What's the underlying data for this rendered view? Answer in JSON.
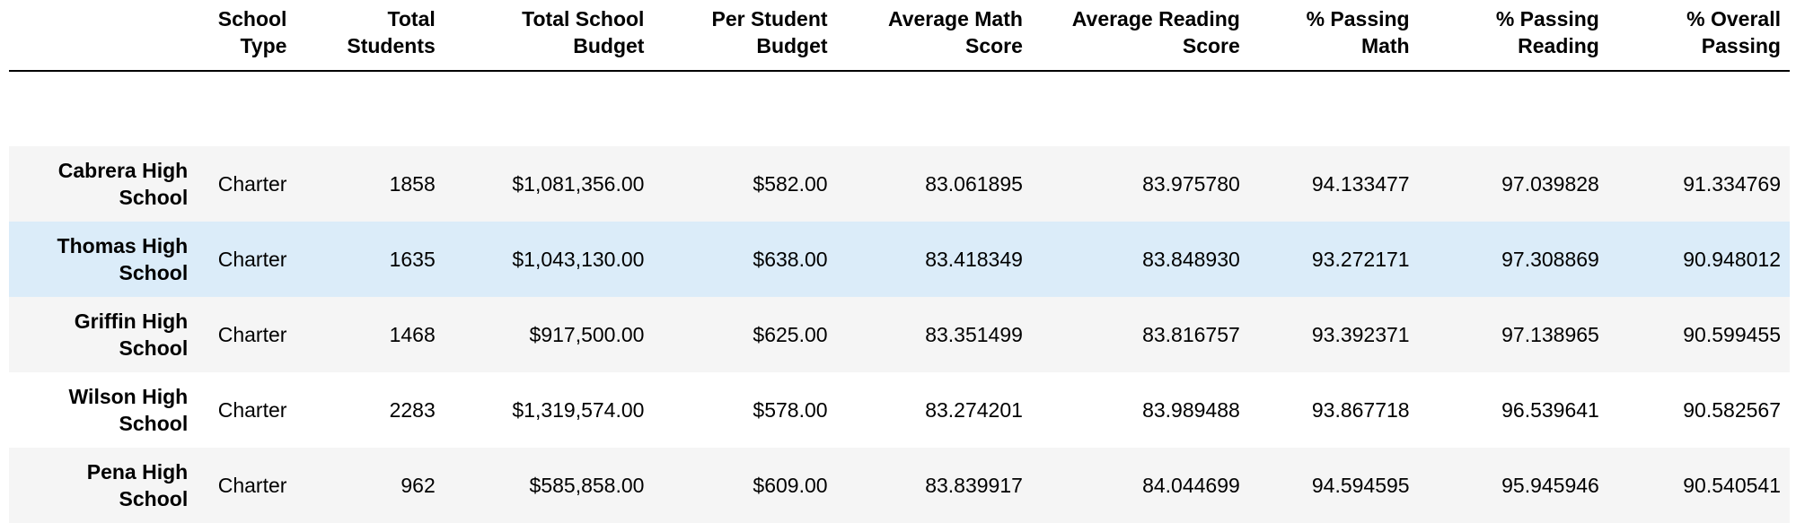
{
  "table": {
    "columns": [
      "",
      "School Type",
      "Total Students",
      "Total School Budget",
      "Per Student Budget",
      "Average Math Score",
      "Average Reading Score",
      "% Passing Math",
      "% Passing Reading",
      "% Overall Passing"
    ],
    "rows": [
      {
        "index": "Cabrera High School",
        "school_type": "Charter",
        "total_students": "1858",
        "total_budget": "$1,081,356.00",
        "per_student_budget": "$582.00",
        "avg_math": "83.061895",
        "avg_reading": "83.975780",
        "pct_math": "94.133477",
        "pct_reading": "97.039828",
        "pct_overall": "91.334769"
      },
      {
        "index": "Thomas High School",
        "school_type": "Charter",
        "total_students": "1635",
        "total_budget": "$1,043,130.00",
        "per_student_budget": "$638.00",
        "avg_math": "83.418349",
        "avg_reading": "83.848930",
        "pct_math": "93.272171",
        "pct_reading": "97.308869",
        "pct_overall": "90.948012"
      },
      {
        "index": "Griffin High School",
        "school_type": "Charter",
        "total_students": "1468",
        "total_budget": "$917,500.00",
        "per_student_budget": "$625.00",
        "avg_math": "83.351499",
        "avg_reading": "83.816757",
        "pct_math": "93.392371",
        "pct_reading": "97.138965",
        "pct_overall": "90.599455"
      },
      {
        "index": "Wilson High School",
        "school_type": "Charter",
        "total_students": "2283",
        "total_budget": "$1,319,574.00",
        "per_student_budget": "$578.00",
        "avg_math": "83.274201",
        "avg_reading": "83.989488",
        "pct_math": "93.867718",
        "pct_reading": "96.539641",
        "pct_overall": "90.582567"
      },
      {
        "index": "Pena High School",
        "school_type": "Charter",
        "total_students": "962",
        "total_budget": "$585,858.00",
        "per_student_budget": "$609.00",
        "avg_math": "83.839917",
        "avg_reading": "84.044699",
        "pct_math": "94.594595",
        "pct_reading": "95.945946",
        "pct_overall": "90.540541"
      }
    ],
    "highlighted_row": 1,
    "colors": {
      "striped_row": "#f5f5f5",
      "plain_row": "#ffffff",
      "highlight_row": "#dbecf9",
      "header_rule": "#000000"
    }
  }
}
